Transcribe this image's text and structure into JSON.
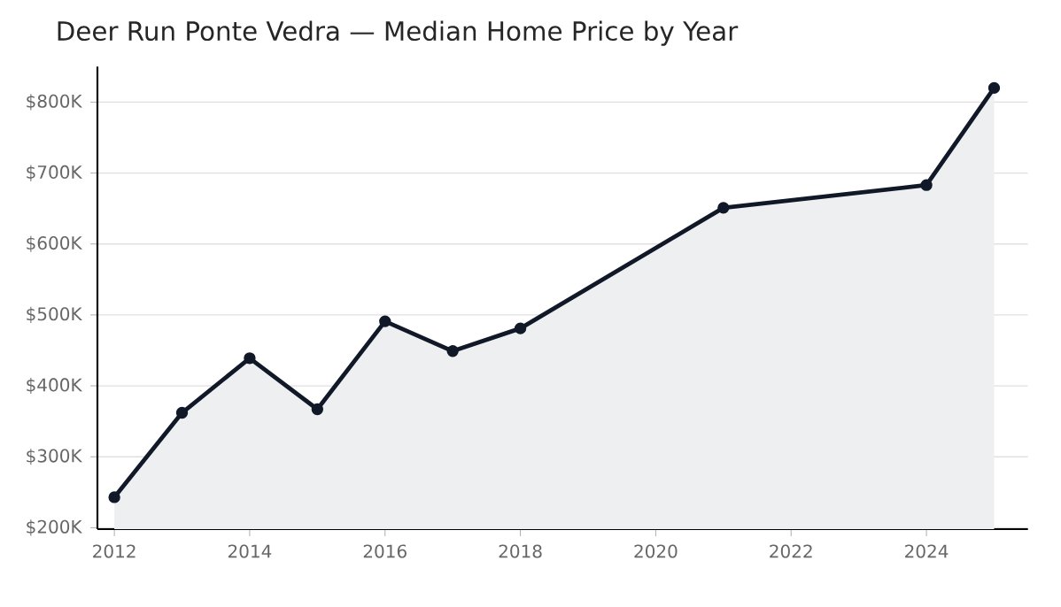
{
  "chart_data": {
    "type": "area",
    "title": "Deer Run Ponte Vedra — Median Home Price by Year",
    "x": [
      2012,
      2013,
      2014,
      2015,
      2016,
      2017,
      2018,
      2021,
      2024,
      2025
    ],
    "series": [
      {
        "color": "#111827",
        "values": [
          243000,
          362000,
          439000,
          367000,
          491000,
          449000,
          481000,
          651000,
          683000,
          820000
        ]
      }
    ],
    "xlim": [
      2011.75,
      2025.5
    ],
    "ylim": [
      198000,
      850000
    ],
    "xticks": [
      2012,
      2014,
      2016,
      2018,
      2020,
      2022,
      2024
    ],
    "yticks": [
      {
        "value": 200000,
        "label": "$200K"
      },
      {
        "value": 300000,
        "label": "$300K"
      },
      {
        "value": 400000,
        "label": "$400K"
      },
      {
        "value": 500000,
        "label": "$500K"
      },
      {
        "value": 600000,
        "label": "$600K"
      },
      {
        "value": 700000,
        "label": "$700K"
      },
      {
        "value": 800000,
        "label": "$800K"
      }
    ],
    "grid": "y",
    "marker": "circle",
    "line_style": "solid"
  }
}
